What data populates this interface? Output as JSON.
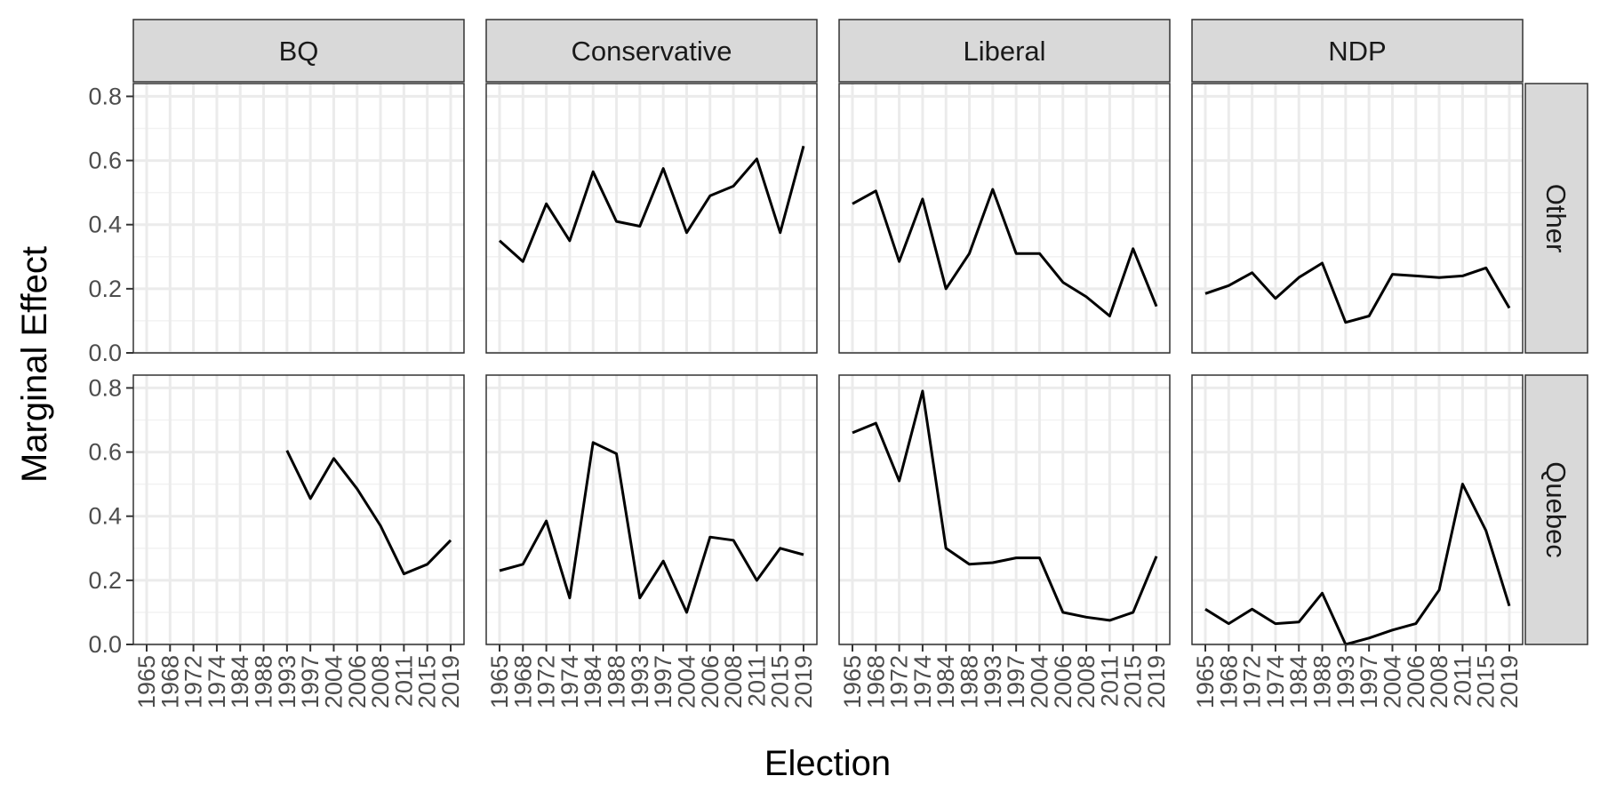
{
  "chart_data": {
    "type": "line",
    "layout": "facet_grid",
    "xlabel": "Election",
    "ylabel": "Marginal Effect",
    "x_categories": [
      "1965",
      "1968",
      "1972",
      "1974",
      "1984",
      "1988",
      "1993",
      "1997",
      "2004",
      "2006",
      "2008",
      "2011",
      "2015",
      "2019"
    ],
    "ylim": [
      0,
      0.84
    ],
    "y_ticks": [
      0.0,
      0.2,
      0.4,
      0.6,
      0.8
    ],
    "y_tick_labels": [
      "0.0",
      "0.2",
      "0.4",
      "0.6",
      "0.8"
    ],
    "col_facets": [
      "BQ",
      "Conservative",
      "Liberal",
      "NDP"
    ],
    "row_facets": [
      "Other",
      "Quebec"
    ],
    "grid": true,
    "line_color": "#000000",
    "panels": [
      {
        "row": "Other",
        "col": "BQ",
        "values": [
          null,
          null,
          null,
          null,
          null,
          null,
          null,
          null,
          null,
          null,
          null,
          null,
          null,
          null
        ]
      },
      {
        "row": "Other",
        "col": "Conservative",
        "values": [
          0.35,
          0.285,
          0.465,
          0.35,
          0.565,
          0.41,
          0.395,
          0.575,
          0.375,
          0.49,
          0.52,
          0.605,
          0.375,
          0.645
        ]
      },
      {
        "row": "Other",
        "col": "Liberal",
        "values": [
          0.465,
          0.505,
          0.285,
          0.48,
          0.2,
          0.31,
          0.51,
          0.31,
          0.31,
          0.22,
          0.175,
          0.115,
          0.325,
          0.145
        ]
      },
      {
        "row": "Other",
        "col": "NDP",
        "values": [
          0.185,
          0.21,
          0.25,
          0.17,
          0.235,
          0.28,
          0.095,
          0.115,
          0.245,
          0.24,
          0.235,
          0.24,
          0.265,
          0.14
        ]
      },
      {
        "row": "Quebec",
        "col": "BQ",
        "values": [
          null,
          null,
          null,
          null,
          null,
          null,
          0.605,
          0.455,
          0.58,
          0.485,
          0.37,
          0.22,
          0.25,
          0.325
        ]
      },
      {
        "row": "Quebec",
        "col": "Conservative",
        "values": [
          0.23,
          0.25,
          0.385,
          0.145,
          0.63,
          0.595,
          0.145,
          0.26,
          0.1,
          0.335,
          0.325,
          0.2,
          0.3,
          0.28
        ]
      },
      {
        "row": "Quebec",
        "col": "Liberal",
        "values": [
          0.66,
          0.69,
          0.51,
          0.79,
          0.3,
          0.25,
          0.255,
          0.27,
          0.27,
          0.1,
          0.085,
          0.075,
          0.1,
          0.275
        ]
      },
      {
        "row": "Quebec",
        "col": "NDP",
        "values": [
          0.11,
          0.065,
          0.11,
          0.065,
          0.07,
          0.16,
          0.0,
          0.02,
          0.045,
          0.065,
          0.17,
          0.5,
          0.355,
          0.12
        ]
      }
    ]
  },
  "colors": {
    "panel_border": "#333333",
    "strip_fill": "#d9d9d9",
    "grid_major": "#ebebeb",
    "grid_minor": "#f2f2f2",
    "tick_color": "#333333",
    "text_color": "#1a1a1a"
  }
}
